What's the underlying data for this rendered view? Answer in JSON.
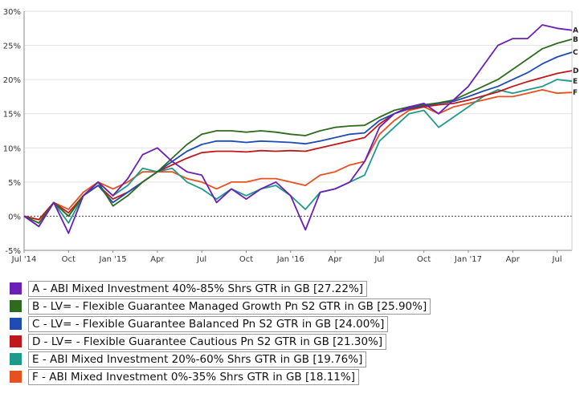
{
  "chart_data": {
    "type": "line",
    "title": "",
    "xlabel": "",
    "ylabel": "",
    "ylim": [
      -5,
      30
    ],
    "y_ticks": [
      "-5%",
      "0%",
      "5%",
      "10%",
      "15%",
      "20%",
      "25%",
      "30%"
    ],
    "y_tick_values": [
      -5,
      0,
      5,
      10,
      15,
      20,
      25,
      30
    ],
    "x_ticks": [
      "Jul '14",
      "Oct",
      "Jan '15",
      "Apr",
      "Jul",
      "Oct",
      "Jan '16",
      "Apr",
      "Jul",
      "Oct",
      "Jan '17",
      "Apr",
      "Jul"
    ],
    "x_tick_values": [
      "2014-07",
      "2014-10",
      "2015-01",
      "2015-04",
      "2015-07",
      "2015-10",
      "2016-01",
      "2016-04",
      "2016-07",
      "2016-10",
      "2017-01",
      "2017-04",
      "2017-07"
    ],
    "xlim": [
      "2014-07",
      "2017-08"
    ],
    "grid": "horizontal",
    "zero_line": "dotted",
    "legend_position": "bottom",
    "series": [
      {
        "key": "A",
        "name": "A - ABI Mixed Investment 40%-85% Shrs GTR in GB [27.22%]",
        "color": "#6a1fb5",
        "x": [
          "2014-07",
          "2014-08",
          "2014-09",
          "2014-10",
          "2014-11",
          "2014-12",
          "2015-01",
          "2015-02",
          "2015-03",
          "2015-04",
          "2015-05",
          "2015-06",
          "2015-07",
          "2015-08",
          "2015-09",
          "2015-10",
          "2015-11",
          "2015-12",
          "2016-01",
          "2016-02",
          "2016-03",
          "2016-04",
          "2016-05",
          "2016-06",
          "2016-07",
          "2016-08",
          "2016-09",
          "2016-10",
          "2016-11",
          "2016-12",
          "2017-01",
          "2017-02",
          "2017-03",
          "2017-04",
          "2017-05",
          "2017-06",
          "2017-07",
          "2017-08"
        ],
        "values": [
          0,
          -1.5,
          2,
          -2.5,
          3,
          5,
          3,
          5.5,
          9,
          10,
          8,
          6.5,
          6,
          2,
          4,
          2.5,
          4,
          5,
          3,
          -2,
          3.5,
          4,
          5,
          8,
          13,
          15,
          16,
          16.5,
          15,
          17,
          19,
          22,
          25,
          26,
          26,
          28,
          27.5,
          27.22
        ]
      },
      {
        "key": "B",
        "name": "B - LV= - Flexible Guarantee Managed Growth Pn S2 GTR in GB [25.90%]",
        "color": "#2e6b1e",
        "x": [
          "2014-07",
          "2014-08",
          "2014-09",
          "2014-10",
          "2014-11",
          "2014-12",
          "2015-01",
          "2015-02",
          "2015-03",
          "2015-04",
          "2015-05",
          "2015-06",
          "2015-07",
          "2015-08",
          "2015-09",
          "2015-10",
          "2015-11",
          "2015-12",
          "2016-01",
          "2016-02",
          "2016-03",
          "2016-04",
          "2016-05",
          "2016-06",
          "2016-07",
          "2016-08",
          "2016-09",
          "2016-10",
          "2016-11",
          "2016-12",
          "2017-01",
          "2017-02",
          "2017-03",
          "2017-04",
          "2017-05",
          "2017-06",
          "2017-07",
          "2017-08"
        ],
        "values": [
          0,
          -1,
          2,
          0,
          3,
          5,
          1.5,
          3,
          5,
          6.5,
          8.5,
          10.5,
          12,
          12.5,
          12.5,
          12.3,
          12.5,
          12.3,
          12,
          11.8,
          12.5,
          13,
          13.2,
          13.3,
          14.5,
          15.5,
          16,
          16.3,
          16.6,
          17,
          18,
          19,
          20,
          21.5,
          23,
          24.5,
          25.3,
          25.9
        ]
      },
      {
        "key": "C",
        "name": "C - LV= - Flexible Guarantee Balanced Pn S2 GTR in GB [24.00%]",
        "color": "#1f4bb5",
        "x": [
          "2014-07",
          "2014-08",
          "2014-09",
          "2014-10",
          "2014-11",
          "2014-12",
          "2015-01",
          "2015-02",
          "2015-03",
          "2015-04",
          "2015-05",
          "2015-06",
          "2015-07",
          "2015-08",
          "2015-09",
          "2015-10",
          "2015-11",
          "2015-12",
          "2016-01",
          "2016-02",
          "2016-03",
          "2016-04",
          "2016-05",
          "2016-06",
          "2016-07",
          "2016-08",
          "2016-09",
          "2016-10",
          "2016-11",
          "2016-12",
          "2017-01",
          "2017-02",
          "2017-03",
          "2017-04",
          "2017-05",
          "2017-06",
          "2017-07",
          "2017-08"
        ],
        "values": [
          0,
          -1,
          2,
          0,
          3,
          4.5,
          2,
          3.5,
          5,
          6.5,
          8,
          9.5,
          10.5,
          11,
          11,
          10.8,
          11,
          10.9,
          10.8,
          10.6,
          11,
          11.5,
          12,
          12.2,
          14,
          15,
          15.8,
          16.2,
          16.5,
          16.8,
          17.5,
          18.3,
          19,
          20,
          21,
          22.3,
          23.3,
          24
        ]
      },
      {
        "key": "D",
        "name": "D - LV= - Flexible Guarantee Cautious Pn S2 GTR in GB [21.30%]",
        "color": "#c01818",
        "x": [
          "2014-07",
          "2014-08",
          "2014-09",
          "2014-10",
          "2014-11",
          "2014-12",
          "2015-01",
          "2015-02",
          "2015-03",
          "2015-04",
          "2015-05",
          "2015-06",
          "2015-07",
          "2015-08",
          "2015-09",
          "2015-10",
          "2015-11",
          "2015-12",
          "2016-01",
          "2016-02",
          "2016-03",
          "2016-04",
          "2016-05",
          "2016-06",
          "2016-07",
          "2016-08",
          "2016-09",
          "2016-10",
          "2016-11",
          "2016-12",
          "2017-01",
          "2017-02",
          "2017-03",
          "2017-04",
          "2017-05",
          "2017-06",
          "2017-07",
          "2017-08"
        ],
        "values": [
          0,
          -0.5,
          2,
          0.5,
          3,
          4.5,
          2.5,
          3.5,
          5,
          6.5,
          7.5,
          8.5,
          9.3,
          9.5,
          9.5,
          9.4,
          9.6,
          9.5,
          9.6,
          9.5,
          10,
          10.5,
          11,
          11.5,
          13.5,
          15,
          15.7,
          16,
          16.3,
          16.5,
          17,
          17.6,
          18.2,
          19,
          19.7,
          20.3,
          20.9,
          21.3
        ]
      },
      {
        "key": "E",
        "name": "E - ABI Mixed Investment 20%-60% Shrs GTR in GB [19.76%]",
        "color": "#1e9a8a",
        "x": [
          "2014-07",
          "2014-08",
          "2014-09",
          "2014-10",
          "2014-11",
          "2014-12",
          "2015-01",
          "2015-02",
          "2015-03",
          "2015-04",
          "2015-05",
          "2015-06",
          "2015-07",
          "2015-08",
          "2015-09",
          "2015-10",
          "2015-11",
          "2015-12",
          "2016-01",
          "2016-02",
          "2016-03",
          "2016-04",
          "2016-05",
          "2016-06",
          "2016-07",
          "2016-08",
          "2016-09",
          "2016-10",
          "2016-11",
          "2016-12",
          "2017-01",
          "2017-02",
          "2017-03",
          "2017-04",
          "2017-05",
          "2017-06",
          "2017-07",
          "2017-08"
        ],
        "values": [
          0,
          -1.5,
          2,
          -1,
          3,
          5,
          3,
          4.5,
          7,
          6.5,
          7,
          5,
          4,
          2.5,
          4,
          3,
          4,
          4.5,
          3,
          1,
          3.5,
          4,
          5,
          6,
          11,
          13,
          15,
          15.5,
          13,
          14.5,
          16,
          17.5,
          18.5,
          18,
          18.5,
          19,
          20,
          19.76
        ]
      },
      {
        "key": "F",
        "name": "F - ABI Mixed Investment 0%-35% Shrs GTR in GB [18.11%]",
        "color": "#e8501f",
        "x": [
          "2014-07",
          "2014-08",
          "2014-09",
          "2014-10",
          "2014-11",
          "2014-12",
          "2015-01",
          "2015-02",
          "2015-03",
          "2015-04",
          "2015-05",
          "2015-06",
          "2015-07",
          "2015-08",
          "2015-09",
          "2015-10",
          "2015-11",
          "2015-12",
          "2016-01",
          "2016-02",
          "2016-03",
          "2016-04",
          "2016-05",
          "2016-06",
          "2016-07",
          "2016-08",
          "2016-09",
          "2016-10",
          "2016-11",
          "2016-12",
          "2017-01",
          "2017-02",
          "2017-03",
          "2017-04",
          "2017-05",
          "2017-06",
          "2017-07",
          "2017-08"
        ],
        "values": [
          0,
          -0.5,
          2,
          1,
          3.5,
          5,
          4,
          5,
          6.5,
          6.5,
          6.5,
          5.5,
          5,
          4,
          5,
          5,
          5.5,
          5.5,
          5,
          4.5,
          6,
          6.5,
          7.5,
          8,
          12,
          14,
          15.5,
          16,
          15,
          16,
          16.5,
          17,
          17.5,
          17.5,
          18,
          18.5,
          18,
          18.11
        ]
      }
    ]
  }
}
